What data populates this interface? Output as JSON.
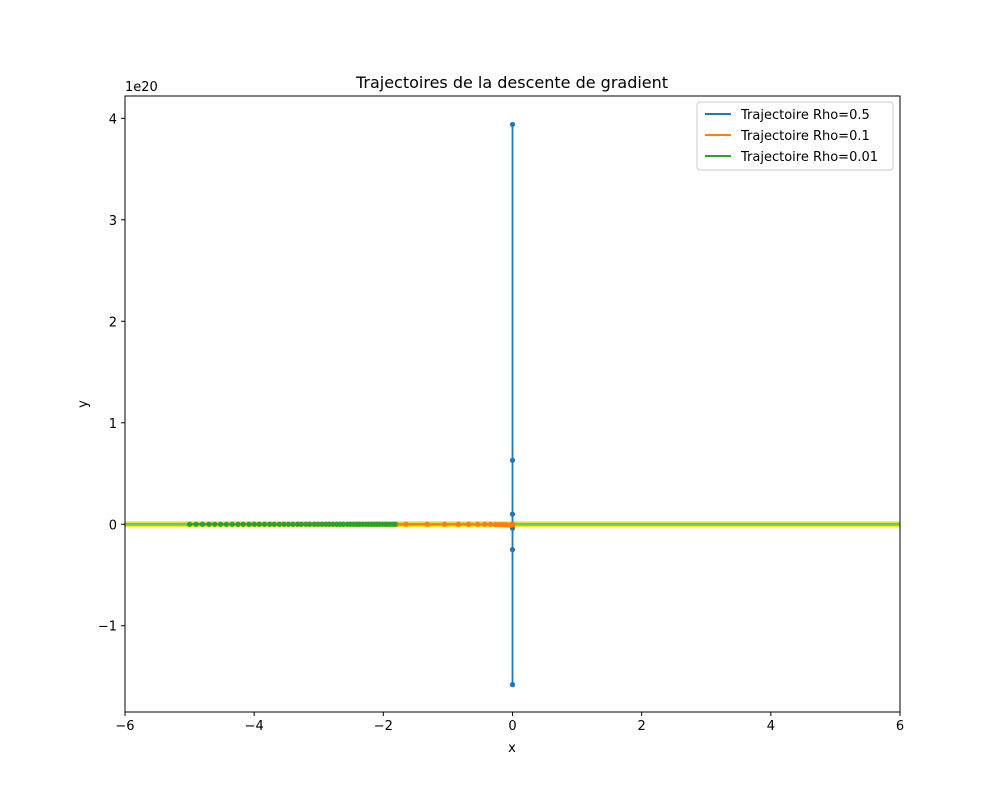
{
  "chart_data": {
    "type": "line",
    "title": "Trajectoires de la descente de gradient",
    "xlabel": "x",
    "ylabel": "y",
    "xlim": [
      -6,
      6
    ],
    "ylim": [
      -1.85,
      4.22
    ],
    "y_scale_label": "1e20",
    "x_ticks": [
      -6,
      -4,
      -2,
      0,
      2,
      4,
      6
    ],
    "x_tick_labels": [
      "−6",
      "−4",
      "−2",
      "0",
      "2",
      "4",
      "6"
    ],
    "y_ticks": [
      -1,
      0,
      1,
      2,
      3,
      4
    ],
    "y_tick_labels": [
      "−1",
      "0",
      "1",
      "2",
      "3",
      "4"
    ],
    "grid": false,
    "legend_position": "top-right",
    "contour_band": {
      "y_center": 0,
      "color_outer": "#fde725",
      "color_inner": "#5ec962"
    },
    "series": [
      {
        "name": "Trajectoire Rho=0.5",
        "color": "#1f77b4",
        "x": [
          0,
          0,
          0,
          0,
          0,
          0,
          0,
          0
        ],
        "y": [
          0,
          0,
          -0.04,
          0.1,
          -0.25,
          0.63,
          -1.58,
          3.94
        ]
      },
      {
        "name": "Trajectoire Rho=0.1",
        "color": "#ff7f0e",
        "x": [
          -1.8,
          -1.65,
          -1.32,
          -1.05,
          -0.84,
          -0.68,
          -0.54,
          -0.43,
          -0.34,
          -0.27,
          -0.22,
          -0.17,
          -0.13,
          -0.1,
          -0.08,
          -0.06,
          -0.04,
          -0.03,
          -0.02,
          -0.01,
          0
        ],
        "y": [
          0,
          0,
          0,
          0,
          0,
          0,
          0,
          0,
          0,
          -0.003,
          -0.003,
          -0.004,
          -0.005,
          -0.006,
          -0.007,
          -0.008,
          -0.008,
          -0.008,
          -0.007,
          -0.004,
          0
        ]
      },
      {
        "name": "Trajectoire Rho=0.01",
        "color": "#2ca02c",
        "x": [
          -5.0,
          -4.9,
          -4.8,
          -4.7,
          -4.61,
          -4.52,
          -4.43,
          -4.34,
          -4.25,
          -4.17,
          -4.08,
          -4.0,
          -3.92,
          -3.84,
          -3.76,
          -3.69,
          -3.61,
          -3.54,
          -3.47,
          -3.4,
          -3.33,
          -3.27,
          -3.2,
          -3.14,
          -3.07,
          -3.01,
          -2.95,
          -2.89,
          -2.84,
          -2.78,
          -2.72,
          -2.67,
          -2.62,
          -2.56,
          -2.51,
          -2.46,
          -2.41,
          -2.37,
          -2.32,
          -2.27,
          -2.23,
          -2.18,
          -2.14,
          -2.1,
          -2.06,
          -2.01,
          -1.97,
          -1.94,
          -1.9,
          -1.86,
          -1.82
        ],
        "y": [
          0,
          0,
          0,
          0,
          0,
          0,
          0,
          0,
          0,
          0,
          0,
          0,
          0,
          0,
          0,
          0,
          0,
          0,
          0,
          0,
          0,
          0,
          0,
          0,
          0,
          0,
          0,
          0,
          0,
          0,
          0,
          0,
          0,
          0,
          0,
          0,
          0,
          0,
          0,
          0,
          0,
          0,
          0,
          0,
          0,
          0,
          0,
          0,
          0,
          0,
          0
        ]
      }
    ]
  }
}
